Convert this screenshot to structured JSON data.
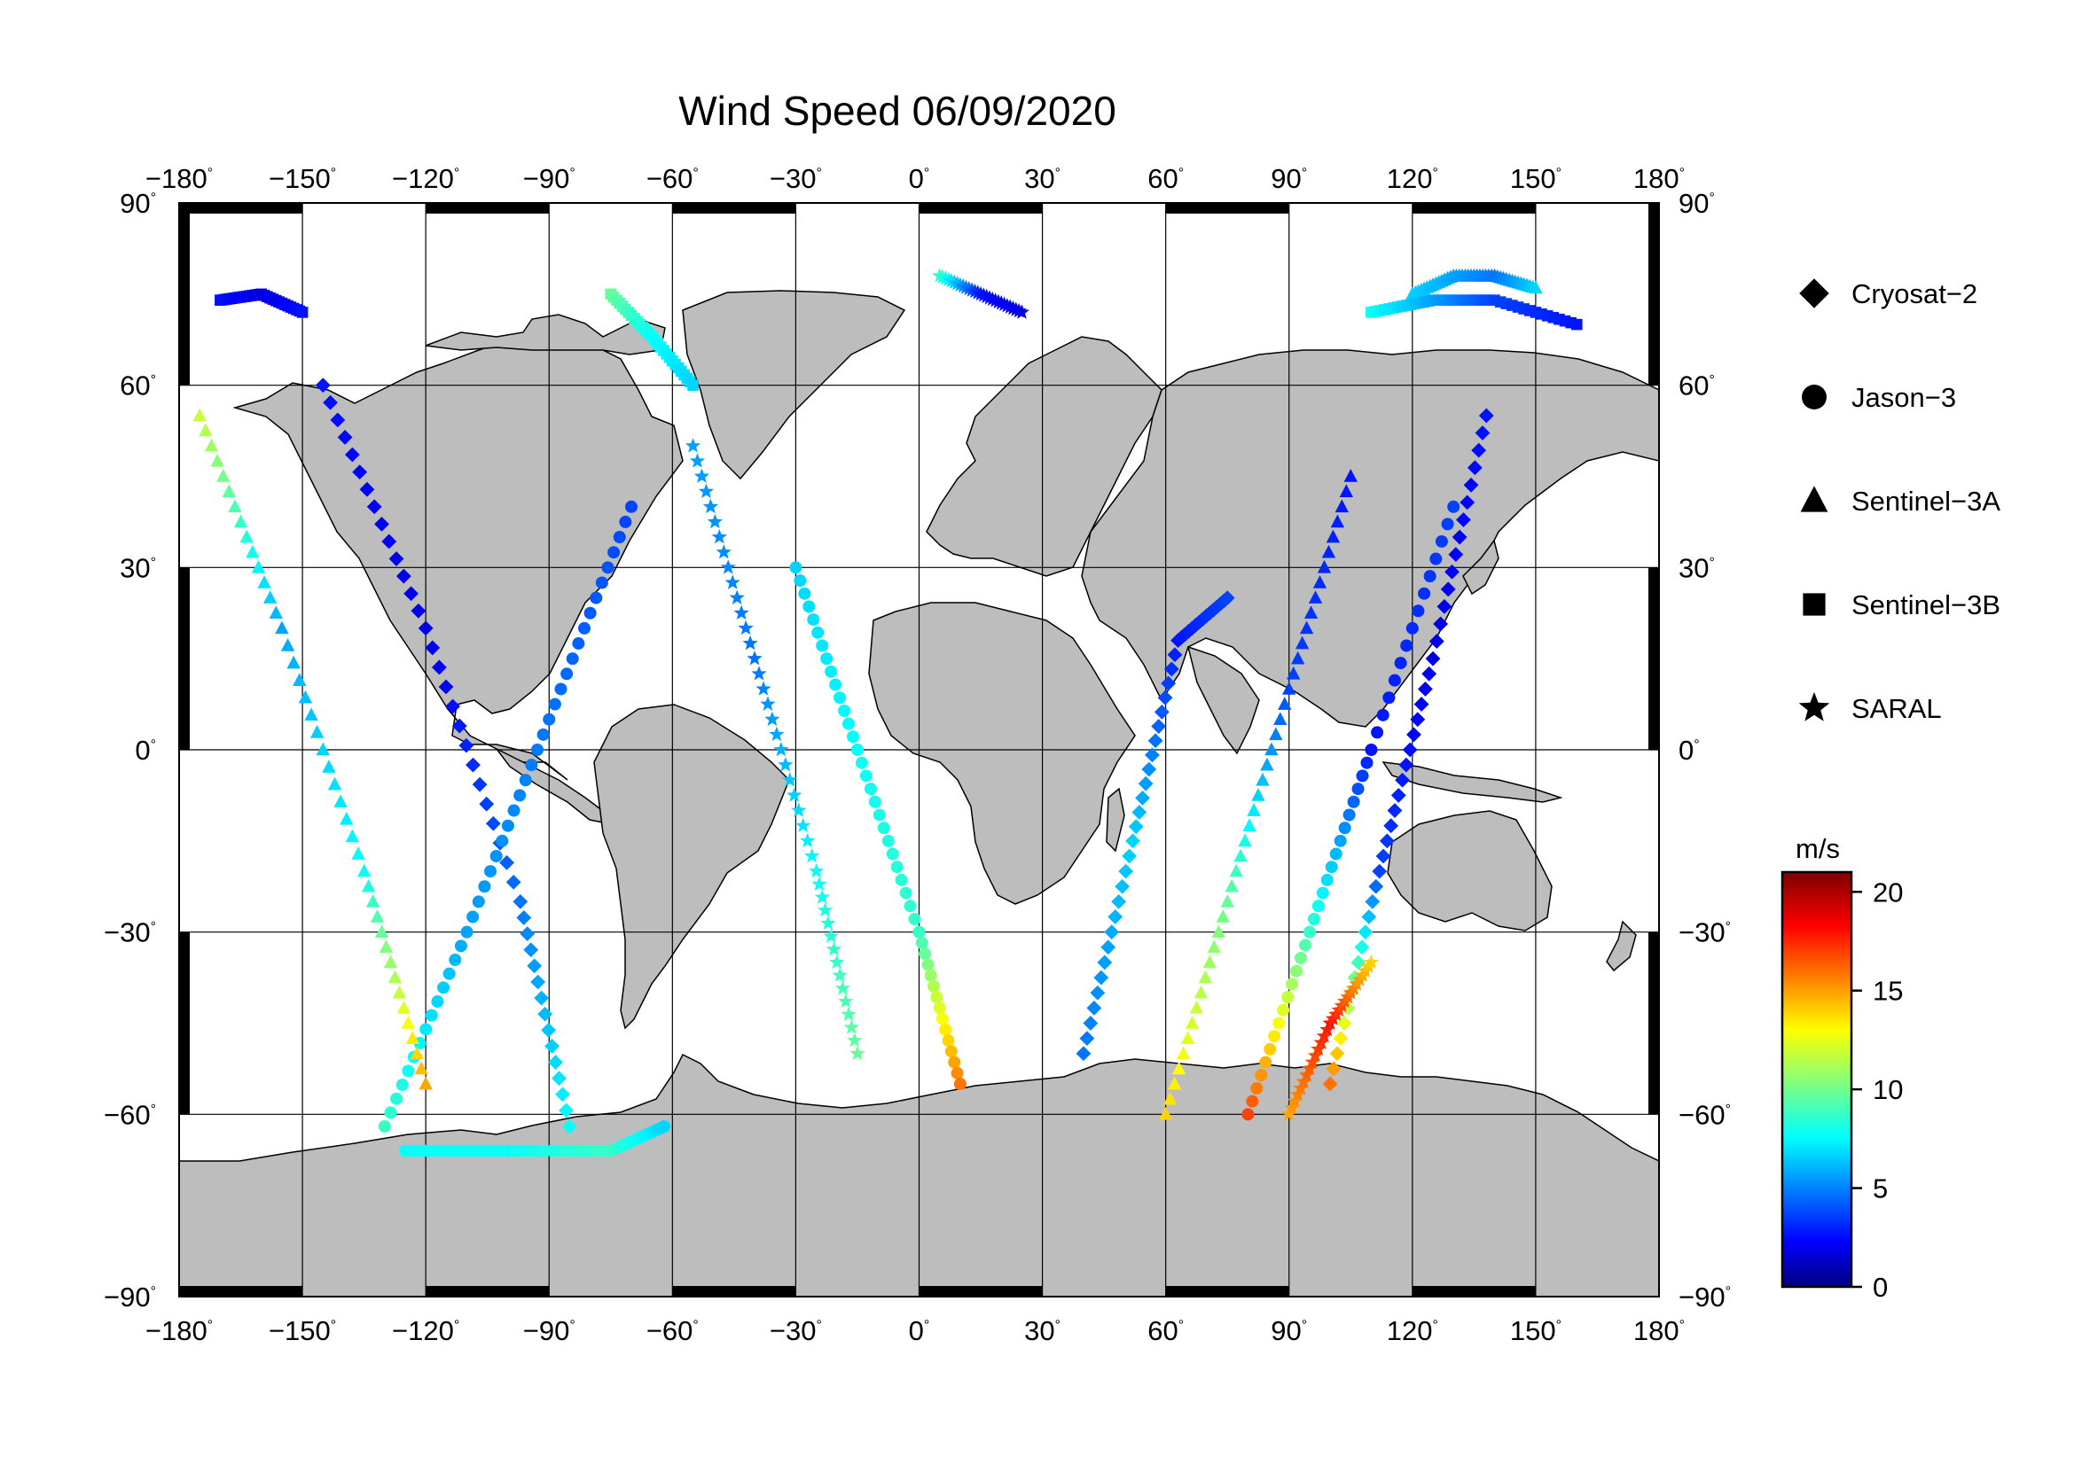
{
  "title": "Wind Speed 06/09/2020",
  "colors": {
    "land": "#bdbdbd",
    "ocean": "#ffffff",
    "frame": "#000000",
    "grid": "#000000"
  },
  "axes": {
    "lon_ticks": [
      -180,
      -150,
      -120,
      -90,
      -60,
      -30,
      0,
      30,
      60,
      90,
      120,
      150,
      180
    ],
    "lat_ticks": [
      90,
      60,
      30,
      0,
      -30,
      -60,
      -90
    ],
    "lon_range": [
      -180,
      180
    ],
    "lat_range": [
      -90,
      90
    ],
    "lon_labels": [
      "−180",
      "−150",
      "−120",
      "−90",
      "−60",
      "−30",
      "0",
      "30",
      "60",
      "90",
      "120",
      "150",
      "180"
    ],
    "lat_labels": [
      "90",
      "60",
      "30",
      "0",
      "−30",
      "−60",
      "−90"
    ],
    "degree_symbol": "°",
    "grid": true
  },
  "legend": {
    "placement": "right",
    "items": [
      {
        "label": "Cryosat−2",
        "marker": "diamond"
      },
      {
        "label": "Jason−3",
        "marker": "circle"
      },
      {
        "label": "Sentinel−3A",
        "marker": "triangle"
      },
      {
        "label": "Sentinel−3B",
        "marker": "square"
      },
      {
        "label": "SARAL",
        "marker": "star"
      }
    ]
  },
  "colorbar": {
    "unit": "m/s",
    "min": 0,
    "max": 21,
    "tick_values": [
      0,
      5,
      10,
      15,
      20
    ],
    "tick_labels": [
      "0",
      "5",
      "10",
      "15",
      "20"
    ],
    "colormap": "jet"
  },
  "chart_data": {
    "type": "scatter",
    "title": "Wind Speed 06/09/2020",
    "xlabel": "",
    "ylabel": "",
    "xlim": [
      -180,
      180
    ],
    "ylim": [
      -90,
      90
    ],
    "color_variable": "wind speed (m/s)",
    "series": [
      {
        "name": "Cryosat−2",
        "marker": "diamond",
        "tracks": [
          {
            "lon": [
              -145,
              -120,
              -97,
              -85
            ],
            "lat": [
              60,
              20,
              -25,
              -62
            ],
            "speed": [
              3,
              2,
              5,
              8
            ]
          },
          {
            "lon": [
              100,
              112,
              125,
              138
            ],
            "lat": [
              -55,
              -20,
              15,
              55
            ],
            "speed": [
              16,
              4,
              2,
              3
            ]
          },
          {
            "lon": [
              40,
              52,
              63,
              75
            ],
            "lat": [
              -50,
              -15,
              18,
              25
            ],
            "speed": [
              5,
              7,
              3,
              4
            ]
          }
        ]
      },
      {
        "name": "Jason−3",
        "marker": "circle",
        "tracks": [
          {
            "lon": [
              -130,
              -110,
              -90,
              -70
            ],
            "lat": [
              -62,
              -30,
              5,
              40
            ],
            "speed": [
              9,
              6,
              5,
              4
            ]
          },
          {
            "lon": [
              -30,
              -15,
              0,
              10
            ],
            "lat": [
              30,
              0,
              -30,
              -55
            ],
            "speed": [
              7,
              8,
              9,
              16
            ]
          },
          {
            "lon": [
              80,
              95,
              110,
              130
            ],
            "lat": [
              -60,
              -30,
              0,
              40
            ],
            "speed": [
              17,
              9,
              3,
              4
            ]
          },
          {
            "lon": [
              -125,
              -100,
              -75,
              -62
            ],
            "lat": [
              -66,
              -66,
              -66,
              -62
            ],
            "speed": [
              8,
              8,
              9,
              7
            ]
          }
        ]
      },
      {
        "name": "Sentinel−3A",
        "marker": "triangle",
        "tracks": [
          {
            "lon": [
              -175,
              -155,
              -135,
              -120
            ],
            "lat": [
              55,
              20,
              -20,
              -55
            ],
            "speed": [
              12,
              6,
              8,
              15
            ]
          },
          {
            "lon": [
              60,
              75,
              90,
              105
            ],
            "lat": [
              -60,
              -25,
              10,
              45
            ],
            "speed": [
              14,
              10,
              4,
              3
            ]
          },
          {
            "lon": [
              120,
              130,
              140,
              150
            ],
            "lat": [
              75,
              78,
              78,
              76
            ],
            "speed": [
              7,
              6,
              5,
              7
            ]
          }
        ]
      },
      {
        "name": "Sentinel−3B",
        "marker": "square",
        "tracks": [
          {
            "lon": [
              -170,
              -160,
              -150
            ],
            "lat": [
              74,
              75,
              72
            ],
            "speed": [
              3,
              2,
              3
            ]
          },
          {
            "lon": [
              -75,
              -65,
              -55
            ],
            "lat": [
              75,
              68,
              60
            ],
            "speed": [
              10,
              8,
              7
            ]
          },
          {
            "lon": [
              110,
              125,
              140,
              160
            ],
            "lat": [
              72,
              74,
              74,
              70
            ],
            "speed": [
              8,
              6,
              4,
              3
            ]
          }
        ]
      },
      {
        "name": "SARAL",
        "marker": "star",
        "tracks": [
          {
            "lon": [
              -55,
              -40,
              -25,
              -15
            ],
            "lat": [
              50,
              15,
              -20,
              -50
            ],
            "speed": [
              6,
              5,
              8,
              10
            ]
          },
          {
            "lon": [
              5,
              15,
              25
            ],
            "lat": [
              78,
              75,
              72
            ],
            "speed": [
              9,
              3,
              2
            ]
          },
          {
            "lon": [
              90,
              100,
              110
            ],
            "lat": [
              -60,
              -45,
              -35
            ],
            "speed": [
              15,
              18,
              14
            ]
          }
        ]
      }
    ]
  }
}
